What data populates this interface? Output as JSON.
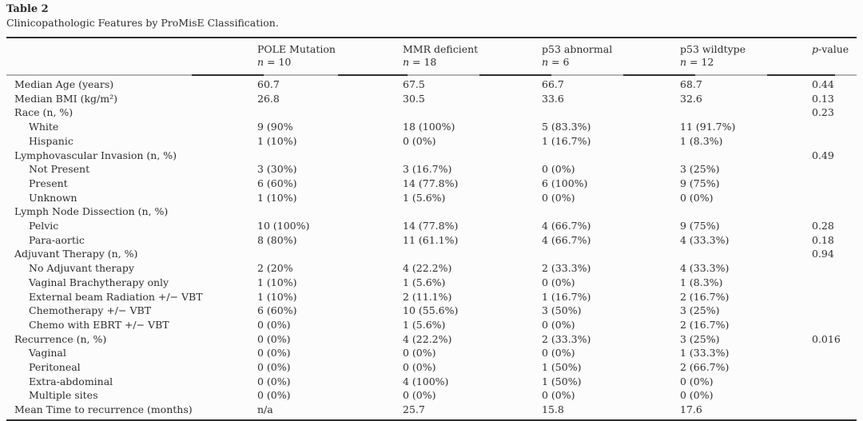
{
  "page": {
    "label": "Table 2",
    "caption": "Clinicopathologic Features by ProMisE Classification."
  },
  "table": {
    "columns": [
      {
        "label": "POLE Mutation",
        "n_italic": "n",
        "n_rest": " = 10"
      },
      {
        "label": "MMR deficient",
        "n_italic": "n",
        "n_rest": " = 18"
      },
      {
        "label": "p53 abnormal",
        "n_italic": "n",
        "n_rest": " = 6"
      },
      {
        "label": "p53 wildtype",
        "n_italic": "n",
        "n_rest": " = 12"
      }
    ],
    "p_header": {
      "italic": "p",
      "rest": "-value"
    },
    "rows": [
      {
        "label": "Median Age (years)",
        "indent": 0,
        "values": [
          "60.7",
          "67.5",
          "66.7",
          "68.7"
        ],
        "p": "0.44"
      },
      {
        "label": "Median BMI (kg/m²)",
        "indent": 0,
        "values": [
          "26.8",
          "30.5",
          "33.6",
          "32.6"
        ],
        "p": "0.13"
      },
      {
        "label": "Race (n, %)",
        "indent": 0,
        "values": [
          "",
          "",
          "",
          ""
        ],
        "p": "0.23"
      },
      {
        "label": "White",
        "indent": 1,
        "values": [
          "9 (90%",
          "18 (100%)",
          "5 (83.3%)",
          "11 (91.7%)"
        ],
        "p": ""
      },
      {
        "label": "Hispanic",
        "indent": 1,
        "values": [
          "1 (10%)",
          "0 (0%)",
          "1 (16.7%)",
          "1 (8.3%)"
        ],
        "p": ""
      },
      {
        "label": "Lymphovascular Invasion (n, %)",
        "indent": 0,
        "values": [
          "",
          "",
          "",
          ""
        ],
        "p": "0.49"
      },
      {
        "label": "Not Present",
        "indent": 1,
        "values": [
          "3 (30%)",
          "3 (16.7%)",
          "0 (0%)",
          "3 (25%)"
        ],
        "p": ""
      },
      {
        "label": "Present",
        "indent": 1,
        "values": [
          "6 (60%)",
          "14 (77.8%)",
          "6 (100%)",
          "9 (75%)"
        ],
        "p": ""
      },
      {
        "label": "Unknown",
        "indent": 1,
        "values": [
          "1 (10%)",
          "1 (5.6%)",
          "0 (0%)",
          "0 (0%)"
        ],
        "p": ""
      },
      {
        "label": "Lymph Node Dissection (n, %)",
        "indent": 0,
        "values": [
          "",
          "",
          "",
          ""
        ],
        "p": ""
      },
      {
        "label": "Pelvic",
        "indent": 1,
        "values": [
          "10 (100%)",
          "14 (77.8%)",
          "4 (66.7%)",
          "9 (75%)"
        ],
        "p": "0.28"
      },
      {
        "label": "Para-aortic",
        "indent": 1,
        "values": [
          "8 (80%)",
          "11 (61.1%)",
          "4 (66.7%)",
          "4 (33.3%)"
        ],
        "p": "0.18"
      },
      {
        "label": "Adjuvant Therapy (n, %)",
        "indent": 0,
        "values": [
          "",
          "",
          "",
          ""
        ],
        "p": "0.94"
      },
      {
        "label": "No Adjuvant therapy",
        "indent": 1,
        "values": [
          "2 (20%",
          "4 (22.2%)",
          "2 (33.3%)",
          "4 (33.3%)"
        ],
        "p": ""
      },
      {
        "label": "Vaginal Brachytherapy only",
        "indent": 1,
        "values": [
          "1 (10%)",
          "1 (5.6%)",
          "0 (0%)",
          "1 (8.3%)"
        ],
        "p": ""
      },
      {
        "label": "External beam Radiation +/− VBT",
        "indent": 1,
        "values": [
          "1 (10%)",
          "2 (11.1%)",
          "1 (16.7%)",
          "2 (16.7%)"
        ],
        "p": ""
      },
      {
        "label": "Chemotherapy +/− VBT",
        "indent": 1,
        "values": [
          "6 (60%)",
          "10 (55.6%)",
          "3 (50%)",
          "3 (25%)"
        ],
        "p": ""
      },
      {
        "label": "Chemo with EBRT +/− VBT",
        "indent": 1,
        "values": [
          "0 (0%)",
          "1 (5.6%)",
          "0 (0%)",
          "2 (16.7%)"
        ],
        "p": ""
      },
      {
        "label": "Recurrence (n, %)",
        "indent": 0,
        "values": [
          "0 (0%)",
          "4 (22.2%)",
          "2 (33.3%)",
          "3 (25%)"
        ],
        "p": "0.016"
      },
      {
        "label": "Vaginal",
        "indent": 1,
        "values": [
          "0 (0%)",
          "0 (0%)",
          "0 (0%)",
          "1 (33.3%)"
        ],
        "p": ""
      },
      {
        "label": "Peritoneal",
        "indent": 1,
        "values": [
          "0 (0%)",
          "0 (0%)",
          "1 (50%)",
          "2 (66.7%)"
        ],
        "p": ""
      },
      {
        "label": "Extra-abdominal",
        "indent": 1,
        "values": [
          "0 (0%)",
          "4 (100%)",
          "1 (50%)",
          "0 (0%)"
        ],
        "p": ""
      },
      {
        "label": "Multiple sites",
        "indent": 1,
        "values": [
          "0 (0%)",
          "0 (0%)",
          "0 (0%)",
          "0 (0%)"
        ],
        "p": ""
      },
      {
        "label": "Mean Time to recurrence (months)",
        "indent": 0,
        "values": [
          "n/a",
          "25.7",
          "15.8",
          "17.6"
        ],
        "p": ""
      }
    ]
  },
  "colors": {
    "text": "#2e2e2e",
    "rule_dark": "#2f2f2f",
    "rule_light": "#b3b3b3",
    "background": "#fcfcfc"
  }
}
